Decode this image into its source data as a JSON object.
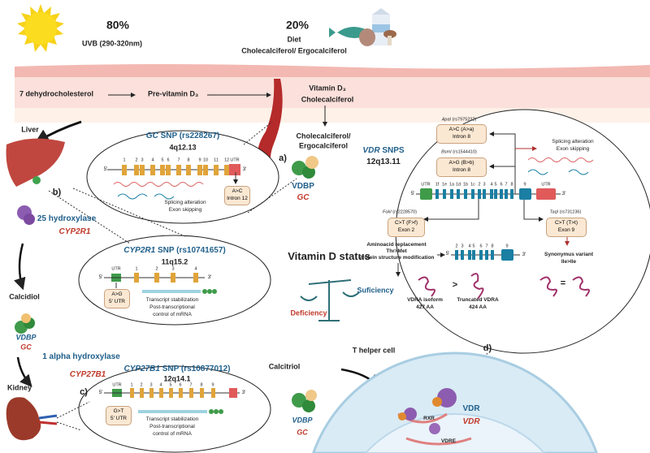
{
  "sun": {
    "percent": "80%",
    "label": "UVB (290-320nm)"
  },
  "diet": {
    "percent": "20%",
    "label": "Diet",
    "sub": "Cholecalciferol/ Ergocalciferol"
  },
  "skin": {
    "step1": "7  dehydrocholesterol",
    "step2": "Pre-vitamin D₃",
    "step3a": "Vitamin D₃",
    "step3b": "Cholecalciferol"
  },
  "blood": {
    "chole": "Cholecalciferol/",
    "ergo": "Ergocalciferol",
    "panel": "a)",
    "vdbp": "VDBP",
    "gc": "GC"
  },
  "gc_snp": {
    "gene": "GC",
    "title": " SNP (rs228267)",
    "locus": "4q12.13",
    "exons": [
      "1",
      "2",
      "3",
      "4",
      "5",
      "6",
      "7",
      "8",
      "9",
      "10",
      "11",
      "12",
      "UTR"
    ],
    "variant": "A>C",
    "location": "Intron 12",
    "effect1": "Splicing alteration",
    "effect2": "Exon skipping",
    "five": "5'",
    "three": "3'"
  },
  "liver": {
    "label": "Liver",
    "panel": "b)",
    "enzyme": "25 hydroxylase",
    "gene": "CYP2R1"
  },
  "cyp2r1": {
    "gene": "CYP2R1",
    "title": " SNP (rs10741657)",
    "locus": "11q15.2",
    "utr": "UTR",
    "exons": [
      "1",
      "2",
      "3",
      "4"
    ],
    "variant": "A>G",
    "location": "5' UTR",
    "effect1": "Transcript stabilization",
    "effect2": "Post-transcriptional",
    "effect3": "control of mRNA",
    "five": "5'",
    "three": "3'"
  },
  "calcidiol": {
    "label": "Calcidiol",
    "vdbp": "VDBP",
    "gc": "GC"
  },
  "status": {
    "title": "Vitamin D status",
    "sufficiency": "Suficiency",
    "deficiency": "Deficiency"
  },
  "kidney": {
    "label": "Kidney",
    "panel": "c)",
    "enzyme": "1 alpha hydroxylase",
    "gene": "CYP27B1"
  },
  "cyp27b1": {
    "gene": "CYP27B1",
    "title": " SNP (rs10877012)",
    "locus": "12q14.1",
    "utr": "UTR",
    "exons": [
      "1",
      "2",
      "3",
      "4",
      "5",
      "6",
      "7",
      "8",
      "9"
    ],
    "variant": "G>T",
    "location": "5' UTR",
    "effect1": "Transcript stabilization",
    "effect2": "Post-transcriptional",
    "effect3": "control of mRNA",
    "five": "5'",
    "three": "3'"
  },
  "calcitriol": {
    "label": "Calcitriol",
    "vdbp": "VDBP",
    "gc": "GC"
  },
  "cell": {
    "label": "T helper cell",
    "panel": "d)",
    "vdr": "VDR",
    "vdr_gene": "VDR",
    "rxr": "RXR",
    "vdre": "VDRE"
  },
  "vdr_snps": {
    "gene": "VDR",
    "title": " SNPS",
    "locus": "12q13.11",
    "exons": [
      "UTR",
      "1f",
      "1e",
      "1a",
      "1d",
      "1b",
      "1c",
      "2",
      "3",
      "4",
      "5",
      "6",
      "7",
      "8",
      "9",
      "UTR"
    ],
    "apai": {
      "name": "ApaI",
      "id": " (rs7975232)",
      "variant": "A>C (A>a)",
      "location": "Intron 8"
    },
    "bsmi": {
      "name": "BsmI",
      "id": " (rs1544410)",
      "variant": "A>G (B>b)",
      "location": "Intron 8"
    },
    "foki": {
      "name": "FokI",
      "id": " (rs2228570)",
      "variant": "C>T (F>f)",
      "location": "Exon 2"
    },
    "taqi": {
      "name": "TaqI",
      "id": " (rs731236)",
      "variant": "C>T (T>t)",
      "location": "Exon 9"
    },
    "splice1": "Splicing alteration",
    "splice2": "Exon skipping",
    "aa1": "Aminoacid  replacement",
    "aa2": "Thr>Met",
    "aa3": "Protein structure modification",
    "trunc_exons": [
      "2",
      "3",
      "4",
      "5",
      "6",
      "7",
      "8",
      "9"
    ],
    "iso1": "VDRA isoform",
    "iso1_len": "427 AA",
    "gt": ">",
    "iso2": "Truncated  VDRA",
    "iso2_len": "424 AA",
    "syn1": "Synonymus variant",
    "syn2": "Ile>Ile",
    "eq": "=",
    "five": "5'",
    "three": "3'"
  },
  "colors": {
    "exon_gc": "#e0a43a",
    "exon_vdr": "#1a7fa3",
    "utr_red": "#e05a5a",
    "utr_green": "#3f9b4a",
    "blue_text": "#1f5f8b",
    "red_text": "#c0392b",
    "skin": "#f6c9c3"
  }
}
